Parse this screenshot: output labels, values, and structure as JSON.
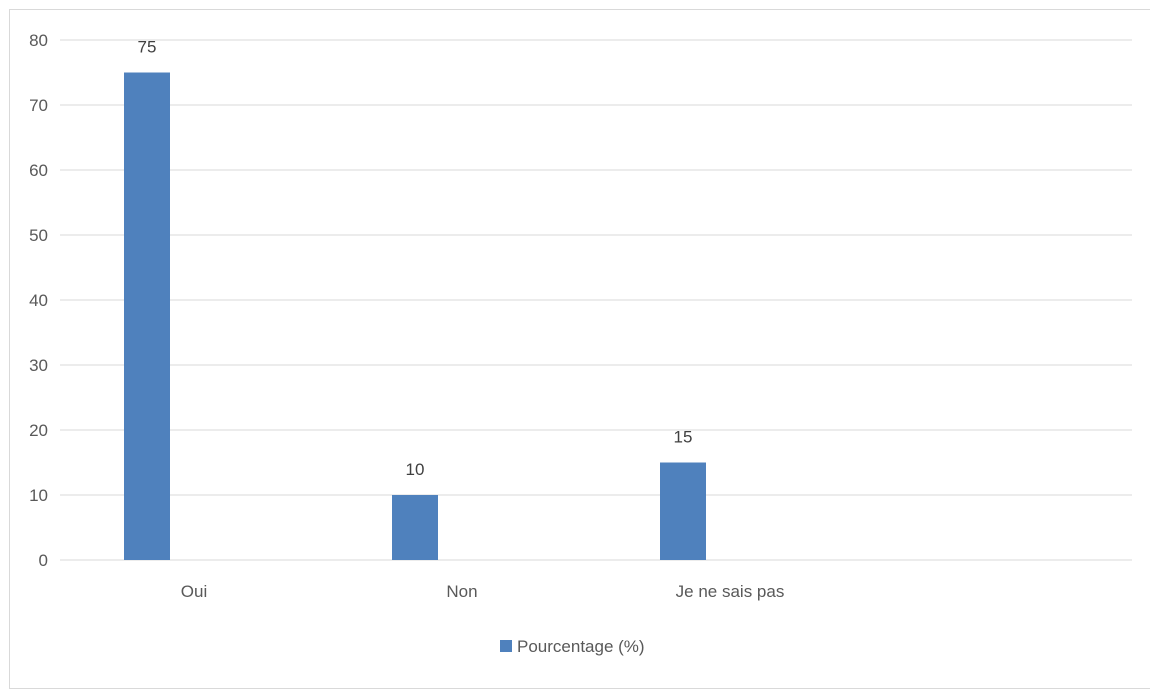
{
  "chart_data": {
    "type": "bar",
    "categories": [
      "Oui",
      "Non",
      "Je ne sais pas",
      ""
    ],
    "series": [
      {
        "name": "Pourcentage (%)",
        "values": [
          75,
          10,
          15,
          null
        ],
        "color": "#4f81bd",
        "data_labels": [
          "75",
          "10",
          "15",
          ""
        ]
      }
    ],
    "y_ticks": [
      "0",
      "10",
      "20",
      "30",
      "40",
      "50",
      "60",
      "70",
      "80"
    ],
    "ylim": [
      0,
      80
    ],
    "grid": true,
    "legend": "bottom",
    "title": "",
    "xlabel": "",
    "ylabel": ""
  }
}
